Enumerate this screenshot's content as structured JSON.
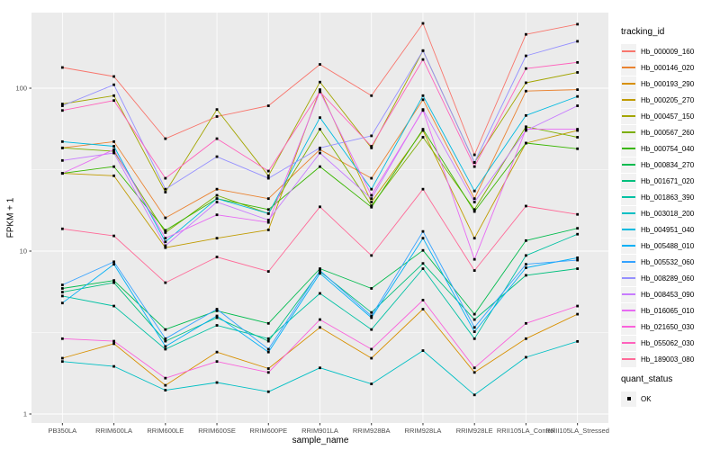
{
  "legend": {
    "title": "tracking_id",
    "quant_title": "quant_status",
    "quant_label": "OK"
  },
  "chart_data": {
    "type": "line",
    "title": "",
    "xlabel": "sample_name",
    "ylabel": "FPKM + 1",
    "y_scale": "log10",
    "ylim": [
      1,
      290
    ],
    "y_ticks": [
      1,
      10,
      100
    ],
    "y_tick_labels": [
      "1",
      "10",
      "100"
    ],
    "y_minor_ticks": [
      3.162,
      31.62
    ],
    "grid": true,
    "panel_bg": "#EBEBEB",
    "grid_color": "#FFFFFF",
    "marker": "black-square",
    "legend_position": "right",
    "categories": [
      "PB350LA",
      "RRIM600LA",
      "RRIM600LE",
      "RRIM600SE",
      "RRIM600PE",
      "RRIM901LA",
      "RRIM928BA",
      "RRIM928LA",
      "RRIM928LE",
      "RRII105LA_Control",
      "RRII105LA_Stressed"
    ],
    "series": [
      {
        "name": "Hb_000009_160",
        "color": "#F8766D",
        "values": [
          134,
          118,
          49,
          67,
          78,
          140,
          90,
          250,
          39,
          214,
          247
        ]
      },
      {
        "name": "Hb_000146_020",
        "color": "#EA8331",
        "values": [
          43,
          47,
          16,
          24,
          21,
          42,
          28,
          85,
          21,
          96,
          98
        ]
      },
      {
        "name": "Hb_000193_290",
        "color": "#D89000",
        "values": [
          2.2,
          2.7,
          1.5,
          2.4,
          1.9,
          3.4,
          2.2,
          4.4,
          1.8,
          2.9,
          4.1
        ]
      },
      {
        "name": "Hb_000205_270",
        "color": "#C09B00",
        "values": [
          30,
          29,
          10.5,
          12,
          13.5,
          98,
          20,
          55,
          12,
          46,
          55
        ]
      },
      {
        "name": "Hb_000457_150",
        "color": "#A3A500",
        "values": [
          80,
          90,
          23,
          74,
          29,
          109,
          43,
          170,
          35,
          108,
          125
        ]
      },
      {
        "name": "Hb_000567_260",
        "color": "#7CAE00",
        "values": [
          43,
          41,
          13,
          22,
          17,
          56,
          19,
          50,
          18,
          58,
          50
        ]
      },
      {
        "name": "Hb_000754_040",
        "color": "#39B600",
        "values": [
          30,
          33,
          13.4,
          21,
          18,
          33,
          18.6,
          56,
          17.5,
          46,
          42.5
        ]
      },
      {
        "name": "Hb_000834_270",
        "color": "#00BB4E",
        "values": [
          5.9,
          6.6,
          3.3,
          4.3,
          3.6,
          7.8,
          5.9,
          10.1,
          4.1,
          11.6,
          13.8
        ]
      },
      {
        "name": "Hb_001671_020",
        "color": "#00BF7D",
        "values": [
          5.6,
          6.4,
          2.8,
          3.9,
          2.8,
          7.5,
          4.2,
          8.4,
          3.8,
          7.1,
          7.8
        ]
      },
      {
        "name": "Hb_001863_390",
        "color": "#00C1A3",
        "values": [
          5.3,
          4.6,
          2.5,
          3.5,
          2.9,
          5.5,
          3.3,
          7.8,
          2.9,
          9.4,
          12.7
        ]
      },
      {
        "name": "Hb_003018_200",
        "color": "#00BFC4",
        "values": [
          2.1,
          1.96,
          1.4,
          1.56,
          1.37,
          1.92,
          1.53,
          2.45,
          1.31,
          2.23,
          2.79
        ]
      },
      {
        "name": "Hb_004951_040",
        "color": "#00BAE0",
        "values": [
          47,
          44,
          11.4,
          21,
          17,
          66,
          24,
          90,
          23.4,
          68,
          89
        ]
      },
      {
        "name": "Hb_005488_010",
        "color": "#00B0F6",
        "values": [
          4.8,
          8.3,
          2.6,
          4.0,
          2.4,
          7.3,
          3.9,
          12,
          3.2,
          7.9,
          9.1
        ]
      },
      {
        "name": "Hb_005532_060",
        "color": "#35A2FF",
        "values": [
          6.2,
          8.6,
          2.9,
          4.4,
          2.5,
          7.6,
          4.0,
          13.2,
          3.4,
          8.3,
          8.8
        ]
      },
      {
        "name": "Hb_008289_060",
        "color": "#9590FF",
        "values": [
          78,
          105,
          24,
          38,
          28,
          43,
          51,
          170,
          35,
          158,
          194
        ]
      },
      {
        "name": "Hb_008453_090",
        "color": "#C77CFF",
        "values": [
          36,
          40,
          10.8,
          20,
          15.5,
          40,
          21,
          74,
          20,
          55,
          78
        ]
      },
      {
        "name": "Hb_016065_010",
        "color": "#E76BF3",
        "values": [
          30,
          42,
          12,
          16.7,
          15,
          95,
          22,
          73,
          8.9,
          56,
          56
        ]
      },
      {
        "name": "Hb_021650_030",
        "color": "#FA62DB",
        "values": [
          2.9,
          2.8,
          1.66,
          2.1,
          1.8,
          3.8,
          2.5,
          5.0,
          1.92,
          3.6,
          4.6
        ]
      },
      {
        "name": "Hb_055062_030",
        "color": "#FF62BC",
        "values": [
          73,
          84,
          28,
          49,
          31,
          95,
          44,
          150,
          33,
          132,
          144
        ]
      },
      {
        "name": "Hb_189003_080",
        "color": "#FF6A98",
        "values": [
          13.7,
          12.4,
          6.4,
          9.2,
          7.5,
          18.7,
          9.4,
          24,
          7.6,
          18.9,
          16.8
        ]
      }
    ]
  }
}
